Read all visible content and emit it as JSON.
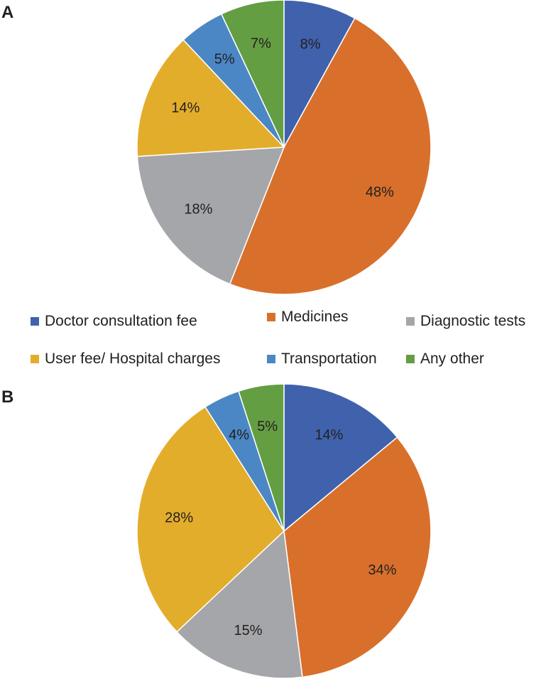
{
  "panels": [
    {
      "letter": "A"
    },
    {
      "letter": "B"
    }
  ],
  "legend": [
    {
      "label": "Doctor consultation fee",
      "color": "#4062ad"
    },
    {
      "label": "Medicines",
      "color": "#d8702c"
    },
    {
      "label": "Diagnostic tests",
      "color": "#a5a6a9"
    },
    {
      "label": "User fee/ Hospital charges",
      "color": "#e3ad2c"
    },
    {
      "label": "Transportation",
      "color": "#4b87c4"
    },
    {
      "label": "Any other",
      "color": "#649e42"
    }
  ],
  "chart_data": [
    {
      "type": "pie",
      "panel": "A",
      "categories": [
        "Doctor consultation fee",
        "Medicines",
        "Diagnostic tests",
        "User fee/ Hospital charges",
        "Transportation",
        "Any other"
      ],
      "values": [
        8,
        48,
        18,
        14,
        5,
        7
      ],
      "labels": [
        "8%",
        "48%",
        "18%",
        "14%",
        "5%",
        "7%"
      ],
      "start": "12 o'clock, clockwise",
      "legend_position": "bottom"
    },
    {
      "type": "pie",
      "panel": "B",
      "categories": [
        "Doctor consultation fee",
        "Medicines",
        "Diagnostic tests",
        "User fee/ Hospital charges",
        "Transportation",
        "Any other"
      ],
      "values": [
        14,
        34,
        15,
        28,
        4,
        5
      ],
      "labels": [
        "14%",
        "34%",
        "15%",
        "28%",
        "4%",
        "5%"
      ],
      "start": "12 o'clock, clockwise"
    }
  ]
}
